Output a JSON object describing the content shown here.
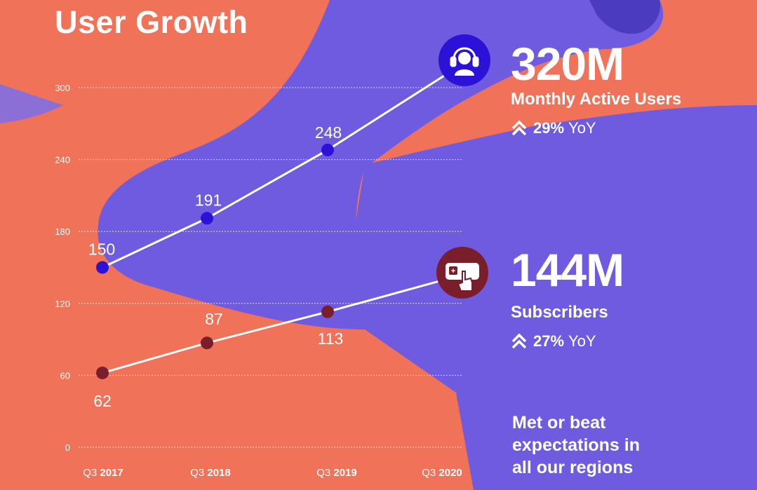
{
  "title": "User Growth",
  "colors": {
    "background": "#ef7259",
    "photo_tint": "#6f5be0",
    "mau_dot": "#2b12d6",
    "subs_dot": "#7a1e2b",
    "line": "#ffffff"
  },
  "mau": {
    "big": "320M",
    "label": "Monthly Active Users",
    "yoy_pct": "29%",
    "yoy_word": "YoY",
    "icon": "headphones-person-icon"
  },
  "subscribers": {
    "big": "144M",
    "label": "Subscribers",
    "yoy_pct": "27%",
    "yoy_word": "YoY",
    "icon": "hand-tap-card-icon"
  },
  "note_lines": [
    "Met or beat",
    "expectations in",
    "all our regions"
  ],
  "chart_data": {
    "type": "line",
    "title": "User Growth",
    "x": [
      {
        "prefix": "Q3",
        "year": "2017"
      },
      {
        "prefix": "Q3",
        "year": "2018"
      },
      {
        "prefix": "Q3",
        "year": "2019"
      },
      {
        "prefix": "Q3",
        "year": "2020"
      }
    ],
    "yticks": [
      "300",
      "240",
      "180",
      "120",
      "60",
      "0"
    ],
    "ylim": [
      0,
      300
    ],
    "grid": true,
    "series": [
      {
        "key": "mau",
        "values": [
          150,
          191,
          248,
          320
        ],
        "labels": [
          "150",
          "191",
          "248",
          ""
        ]
      },
      {
        "key": "subscribers",
        "values": [
          62,
          87,
          113,
          144
        ],
        "labels": [
          "62",
          "87",
          "113",
          ""
        ]
      }
    ]
  }
}
